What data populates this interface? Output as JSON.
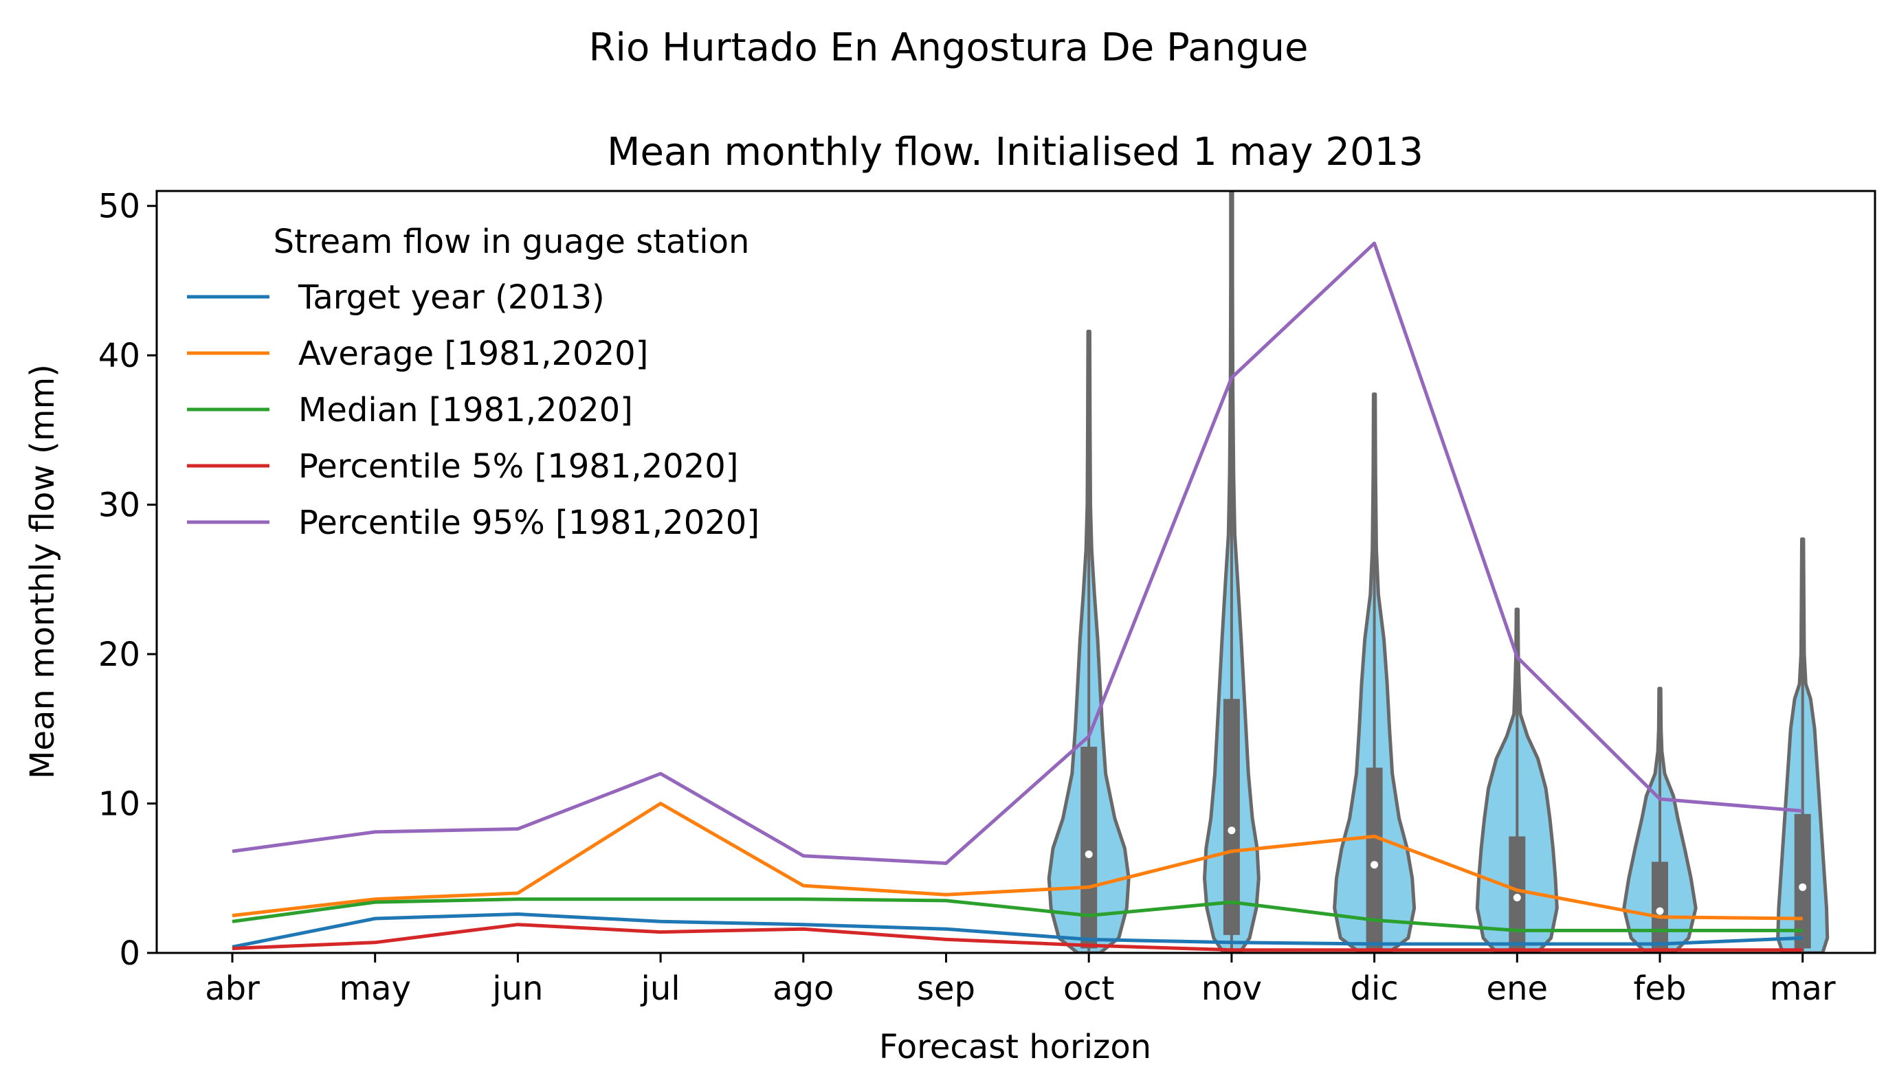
{
  "suptitle": "Rio Hurtado En Angostura De Pangue",
  "chart_data": {
    "type": "line",
    "title": "Mean monthly flow. Initialised 1 may 2013",
    "xlabel": "Forecast horizon",
    "ylabel": "Mean monthly flow (mm)",
    "ylim": [
      0,
      51
    ],
    "yticks": [
      0,
      10,
      20,
      30,
      40,
      50
    ],
    "categories": [
      "abr",
      "may",
      "jun",
      "jul",
      "ago",
      "sep",
      "oct",
      "nov",
      "dic",
      "ene",
      "feb",
      "mar"
    ],
    "legend": {
      "title": "Stream flow in guage station",
      "placement": "upper-left"
    },
    "grid": false,
    "series": [
      {
        "name": "Target year (2013)",
        "color": "#1f77b4",
        "values": [
          0.4,
          2.3,
          2.6,
          2.1,
          1.9,
          1.6,
          0.9,
          0.7,
          0.6,
          0.6,
          0.6,
          1.0
        ]
      },
      {
        "name": "Average [1981,2020]",
        "color": "#ff7f0e",
        "values": [
          2.5,
          3.6,
          4.0,
          10.0,
          4.5,
          3.9,
          4.4,
          6.8,
          7.8,
          4.2,
          2.4,
          2.3
        ]
      },
      {
        "name": "Median [1981,2020]",
        "color": "#2ca02c",
        "values": [
          2.1,
          3.4,
          3.6,
          3.6,
          3.6,
          3.5,
          2.5,
          3.4,
          2.2,
          1.5,
          1.5,
          1.5
        ]
      },
      {
        "name": "Percentile 5% [1981,2020]",
        "color": "#d62728",
        "values": [
          0.3,
          0.7,
          1.9,
          1.4,
          1.6,
          0.9,
          0.5,
          0.2,
          0.2,
          0.2,
          0.2,
          0.2
        ]
      },
      {
        "name": "Percentile 95% [1981,2020]",
        "color": "#9467bd",
        "values": [
          6.8,
          8.1,
          8.3,
          12.0,
          6.5,
          6.0,
          14.5,
          38.5,
          47.5,
          19.8,
          10.3,
          9.5
        ]
      }
    ],
    "violins": {
      "fill_color": "#87ceeb",
      "edge_color": "#696969",
      "items": [
        {
          "category": "oct",
          "min": 0.0,
          "max": 41.6,
          "q1": 0.3,
          "median": 6.6,
          "q3": 13.8,
          "profile": [
            [
              0,
              0.28
            ],
            [
              1,
              0.75
            ],
            [
              3,
              0.95
            ],
            [
              5,
              1.0
            ],
            [
              7,
              0.9
            ],
            [
              9,
              0.65
            ],
            [
              12,
              0.42
            ],
            [
              15,
              0.34
            ],
            [
              18,
              0.28
            ],
            [
              21,
              0.22
            ],
            [
              24,
              0.14
            ],
            [
              27,
              0.07
            ],
            [
              30,
              0.04
            ],
            [
              35,
              0.03
            ],
            [
              41.6,
              0.02
            ]
          ]
        },
        {
          "category": "nov",
          "min": 0.0,
          "max": 51.0,
          "q1": 1.2,
          "median": 8.2,
          "q3": 17.0,
          "profile": [
            [
              0,
              0.2
            ],
            [
              1,
              0.45
            ],
            [
              3,
              0.62
            ],
            [
              5,
              0.68
            ],
            [
              7,
              0.64
            ],
            [
              9,
              0.52
            ],
            [
              12,
              0.42
            ],
            [
              15,
              0.36
            ],
            [
              18,
              0.3
            ],
            [
              21,
              0.24
            ],
            [
              25,
              0.15
            ],
            [
              28,
              0.08
            ],
            [
              32,
              0.05
            ],
            [
              38,
              0.03
            ],
            [
              45,
              0.02
            ],
            [
              51,
              0.02
            ]
          ]
        },
        {
          "category": "dic",
          "min": 0.0,
          "max": 37.4,
          "q1": 0.0,
          "median": 5.9,
          "q3": 12.4,
          "profile": [
            [
              0,
              0.35
            ],
            [
              1,
              0.85
            ],
            [
              3,
              1.0
            ],
            [
              5,
              0.95
            ],
            [
              7,
              0.82
            ],
            [
              9,
              0.62
            ],
            [
              12,
              0.45
            ],
            [
              15,
              0.38
            ],
            [
              18,
              0.32
            ],
            [
              21,
              0.24
            ],
            [
              24,
              0.1
            ],
            [
              27,
              0.05
            ],
            [
              32,
              0.03
            ],
            [
              37.4,
              0.02
            ]
          ]
        },
        {
          "category": "ene",
          "min": 0.0,
          "max": 23.0,
          "q1": 0.3,
          "median": 3.7,
          "q3": 7.8,
          "profile": [
            [
              0,
              0.5
            ],
            [
              1,
              0.85
            ],
            [
              3,
              1.0
            ],
            [
              5,
              0.96
            ],
            [
              7,
              0.9
            ],
            [
              9,
              0.82
            ],
            [
              11,
              0.72
            ],
            [
              13,
              0.52
            ],
            [
              14.5,
              0.26
            ],
            [
              16,
              0.08
            ],
            [
              18,
              0.05
            ],
            [
              20,
              0.03
            ],
            [
              23,
              0.02
            ]
          ]
        },
        {
          "category": "feb",
          "min": 0.0,
          "max": 17.7,
          "q1": 0.3,
          "median": 2.8,
          "q3": 6.1,
          "profile": [
            [
              0,
              0.35
            ],
            [
              1,
              0.72
            ],
            [
              3,
              0.9
            ],
            [
              5,
              0.78
            ],
            [
              7,
              0.62
            ],
            [
              9,
              0.45
            ],
            [
              10.5,
              0.34
            ],
            [
              12,
              0.12
            ],
            [
              13.5,
              0.05
            ],
            [
              15,
              0.03
            ],
            [
              17.7,
              0.02
            ]
          ]
        },
        {
          "category": "mar",
          "min": 0.0,
          "max": 27.7,
          "q1": 0.3,
          "median": 4.4,
          "q3": 9.3,
          "profile": [
            [
              0,
              0.5
            ],
            [
              1,
              0.62
            ],
            [
              3,
              0.6
            ],
            [
              5,
              0.55
            ],
            [
              7,
              0.5
            ],
            [
              9,
              0.45
            ],
            [
              11,
              0.4
            ],
            [
              13,
              0.35
            ],
            [
              15,
              0.3
            ],
            [
              17,
              0.2
            ],
            [
              18,
              0.08
            ],
            [
              20,
              0.04
            ],
            [
              24,
              0.03
            ],
            [
              27.7,
              0.02
            ]
          ]
        }
      ]
    }
  }
}
